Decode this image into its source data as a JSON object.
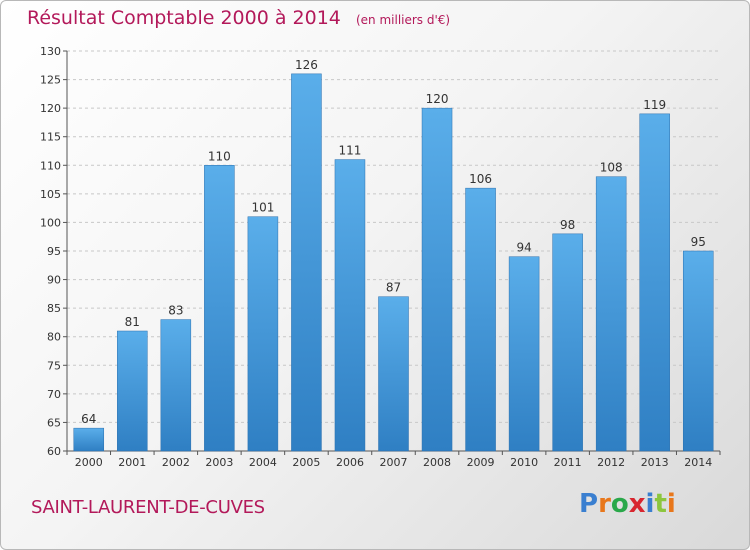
{
  "header": {
    "title": "Résultat Comptable 2000 à 2014",
    "subtitle": "(en milliers d'€)"
  },
  "footer": {
    "commune": "SAINT-LAURENT-DE-CUVES",
    "logo": [
      "P",
      "r",
      "o",
      "x",
      "i",
      "t",
      "i"
    ]
  },
  "colors": {
    "title": "#b3195a",
    "bar_top": "#5aaeea",
    "bar_bottom": "#2f7fc3",
    "logo": [
      "#3a7fd0",
      "#e8771b",
      "#2aa84a",
      "#d8262f",
      "#3a7fd0",
      "#8cc63e",
      "#e8771b"
    ]
  },
  "chart_data": {
    "type": "bar",
    "categories": [
      "2000",
      "2001",
      "2002",
      "2003",
      "2004",
      "2005",
      "2006",
      "2007",
      "2008",
      "2009",
      "2010",
      "2011",
      "2012",
      "2013",
      "2014"
    ],
    "values": [
      64,
      81,
      83,
      110,
      101,
      126,
      111,
      87,
      120,
      106,
      94,
      98,
      108,
      119,
      95
    ],
    "title": "Résultat Comptable 2000 à 2014",
    "xlabel": "",
    "ylabel": "",
    "ylim": [
      60,
      130
    ],
    "yticks": [
      60,
      65,
      70,
      75,
      80,
      85,
      90,
      95,
      100,
      105,
      110,
      115,
      120,
      125,
      130
    ],
    "grid": true,
    "data_labels": true
  }
}
